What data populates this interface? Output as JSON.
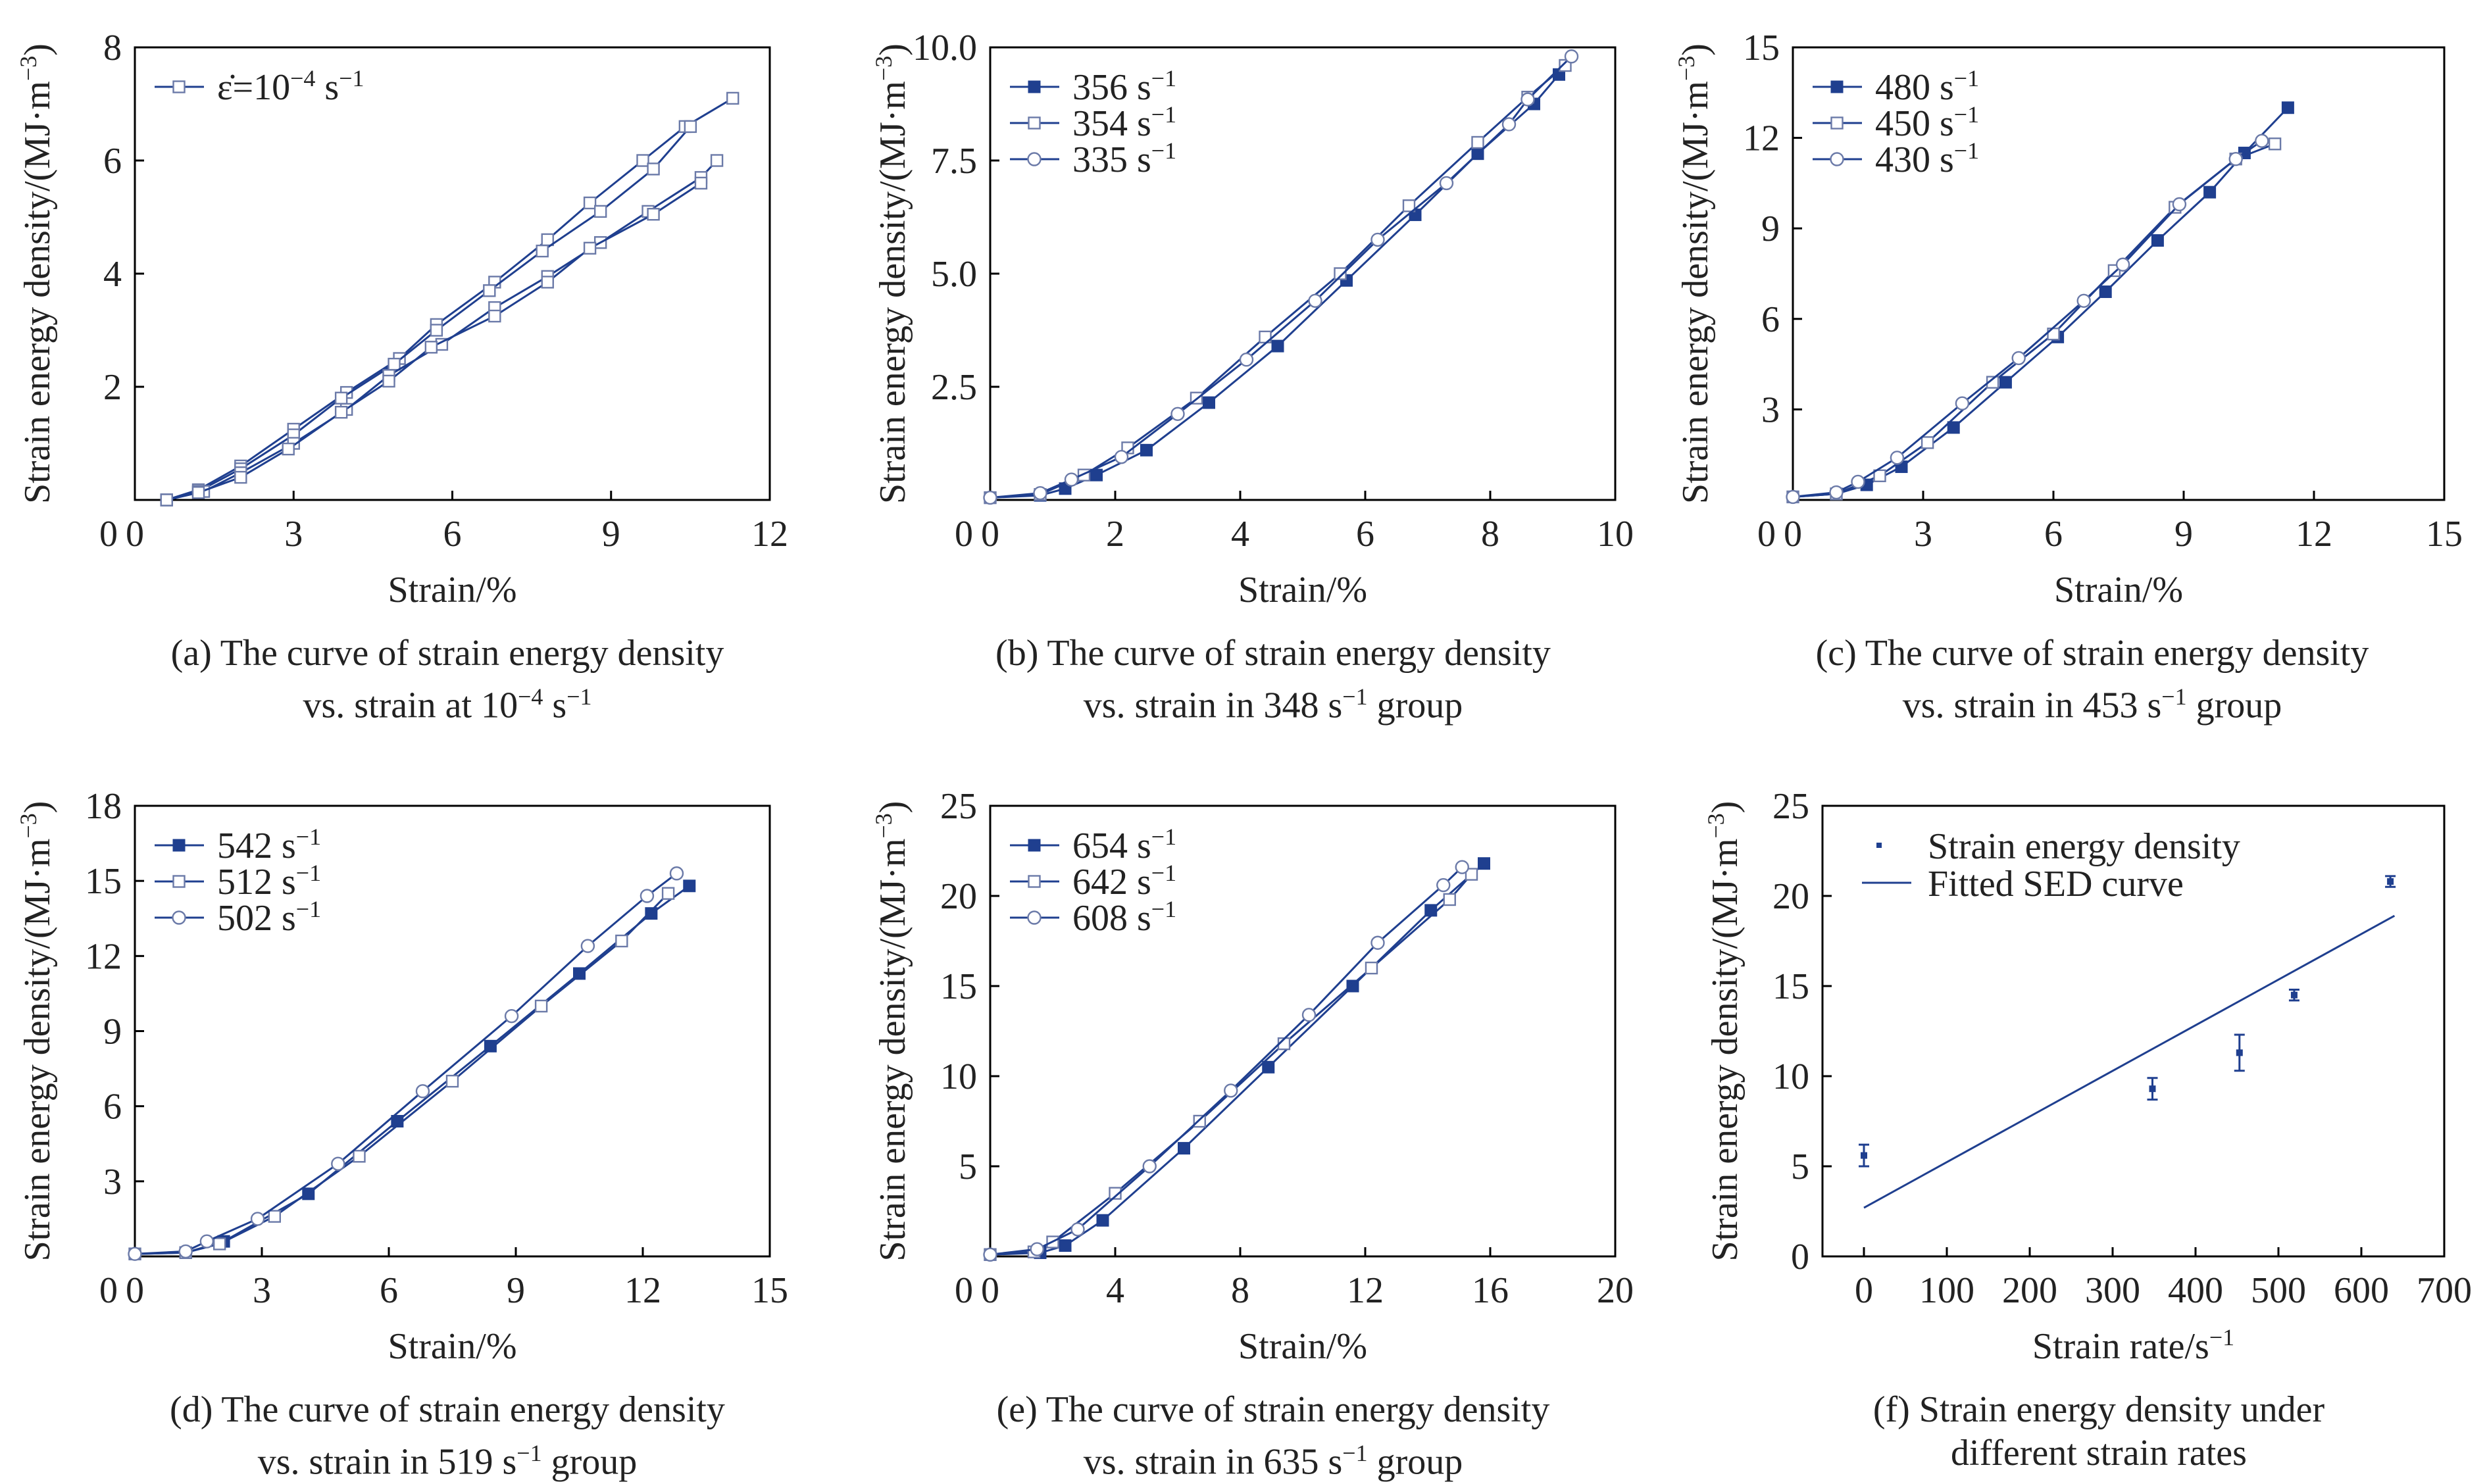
{
  "colors": {
    "series": "#1f3f8f",
    "axis": "#000000",
    "text": "#222222"
  },
  "chart_data": [
    {
      "type": "line",
      "panel": "(a)",
      "caption_line1": "(a) The curve of strain energy density",
      "caption_line2": "vs. strain at 10",
      "caption_line2_sup": "−4",
      "caption_line2_tail": " s",
      "caption_line2_sup2": "−1",
      "caption_line2_end": "",
      "xlabel": "Strain/%",
      "ylabel": "Strain energy density/(MJ·m",
      "ylabel_sup": "−3",
      "ylabel_end": ")",
      "xlim": [
        0,
        12
      ],
      "ylim": [
        0,
        8
      ],
      "xticks": [
        0,
        3,
        6,
        9,
        12
      ],
      "yticks": [
        2,
        4,
        6,
        8
      ],
      "legend_placement": "top-left",
      "legend": [
        {
          "label": "ε̇=10",
          "sup": "−4",
          "tail": " s",
          "sup2": "−1",
          "marker": "square-open"
        }
      ],
      "series": [
        {
          "marker": "square-open",
          "x": [
            0.6,
            1.2,
            2.0,
            3.0,
            4.0,
            5.0,
            5.7,
            6.8,
            7.8,
            8.6,
            9.6,
            10.4,
            11.3
          ],
          "y": [
            0,
            0.18,
            0.6,
            1.25,
            1.9,
            2.5,
            3.1,
            3.85,
            4.6,
            5.25,
            6.0,
            6.6,
            7.1
          ]
        },
        {
          "marker": "square-open",
          "x": [
            0.6,
            1.2,
            2.0,
            3.0,
            3.9,
            4.9,
            5.7,
            6.7,
            7.7,
            8.8,
            9.8,
            10.5
          ],
          "y": [
            0,
            0.15,
            0.55,
            1.15,
            1.8,
            2.4,
            3.0,
            3.7,
            4.4,
            5.1,
            5.85,
            6.6
          ]
        },
        {
          "marker": "square-open",
          "x": [
            0.6,
            1.3,
            2.0,
            3.0,
            4.0,
            4.8,
            5.8,
            6.8,
            7.8,
            8.8,
            9.7,
            10.7,
            11.0
          ],
          "y": [
            0,
            0.15,
            0.48,
            1.0,
            1.6,
            2.2,
            2.75,
            3.4,
            3.95,
            4.55,
            5.1,
            5.7,
            6.0
          ]
        },
        {
          "marker": "square-open",
          "x": [
            0.6,
            1.2,
            2.0,
            2.9,
            3.9,
            4.8,
            5.6,
            6.8,
            7.8,
            8.6,
            9.8,
            10.7
          ],
          "y": [
            0,
            0.13,
            0.4,
            0.9,
            1.55,
            2.1,
            2.7,
            3.25,
            3.85,
            4.45,
            5.05,
            5.6
          ]
        }
      ]
    },
    {
      "type": "line",
      "panel": "(b)",
      "caption_line1": "(b) The curve of strain energy density",
      "caption_line2": "vs. strain in 348 s",
      "caption_line2_sup": "−1",
      "caption_line2_tail": " group",
      "caption_line2_sup2": "",
      "caption_line2_end": "",
      "xlabel": "Strain/%",
      "ylabel": "Strain energy density/(MJ·m",
      "ylabel_sup": "−3",
      "ylabel_end": ")",
      "xlim": [
        0,
        10
      ],
      "ylim": [
        0,
        10
      ],
      "xticks": [
        0,
        2,
        4,
        6,
        8,
        10
      ],
      "yticks": [
        2.5,
        5.0,
        7.5,
        10.0
      ],
      "ytick_labels": [
        "2.5",
        "5.0",
        "7.5",
        "10.0"
      ],
      "legend_placement": "top-left",
      "legend": [
        {
          "label": "356 s",
          "sup": "−1",
          "marker": "square-filled"
        },
        {
          "label": "354 s",
          "sup": "−1",
          "marker": "square-open"
        },
        {
          "label": "335 s",
          "sup": "−1",
          "marker": "circle-open"
        }
      ],
      "series": [
        {
          "name": "356 s−1",
          "marker": "square-filled",
          "x": [
            0,
            0.8,
            1.2,
            1.7,
            2.5,
            3.5,
            4.6,
            5.7,
            6.8,
            7.8,
            8.7,
            9.1
          ],
          "y": [
            0.05,
            0.1,
            0.25,
            0.55,
            1.1,
            2.15,
            3.4,
            4.85,
            6.3,
            7.65,
            8.75,
            9.4
          ]
        },
        {
          "name": "354 s−1",
          "marker": "square-open",
          "x": [
            0,
            0.8,
            1.5,
            2.2,
            3.3,
            4.4,
            5.6,
            6.7,
            7.8,
            8.6,
            9.2
          ],
          "y": [
            0.05,
            0.12,
            0.55,
            1.15,
            2.25,
            3.6,
            5.0,
            6.5,
            7.9,
            8.9,
            9.6
          ]
        },
        {
          "name": "335 s−1",
          "marker": "circle-open",
          "x": [
            0,
            0.8,
            1.3,
            2.1,
            3.0,
            4.1,
            5.2,
            6.2,
            7.3,
            8.3,
            8.6,
            9.3
          ],
          "y": [
            0.05,
            0.15,
            0.45,
            0.95,
            1.9,
            3.1,
            4.4,
            5.75,
            7.0,
            8.3,
            8.85,
            9.8
          ]
        }
      ]
    },
    {
      "type": "line",
      "panel": "(c)",
      "caption_line1": "(c) The curve of strain energy density",
      "caption_line2": "vs. strain in 453 s",
      "caption_line2_sup": "−1",
      "caption_line2_tail": " group",
      "caption_line2_sup2": "",
      "caption_line2_end": "",
      "xlabel": "Strain/%",
      "ylabel": "Strain energy density/(MJ·m",
      "ylabel_sup": "−3",
      "ylabel_end": ")",
      "xlim": [
        0,
        15
      ],
      "ylim": [
        0,
        15
      ],
      "xticks": [
        0,
        3,
        6,
        9,
        12,
        15
      ],
      "yticks": [
        3,
        6,
        9,
        12,
        15
      ],
      "legend_placement": "top-left",
      "legend": [
        {
          "label": "480 s",
          "sup": "−1",
          "marker": "square-filled"
        },
        {
          "label": "450 s",
          "sup": "−1",
          "marker": "square-open"
        },
        {
          "label": "430 s",
          "sup": "−1",
          "marker": "circle-open"
        }
      ],
      "series": [
        {
          "name": "480 s−1",
          "marker": "square-filled",
          "x": [
            0,
            1.0,
            1.7,
            2.5,
            3.7,
            4.9,
            6.1,
            7.2,
            8.4,
            9.6,
            10.4,
            11.4
          ],
          "y": [
            0.1,
            0.2,
            0.5,
            1.1,
            2.4,
            3.9,
            5.4,
            6.9,
            8.6,
            10.2,
            11.5,
            13.0
          ]
        },
        {
          "name": "450 s−1",
          "marker": "square-open",
          "x": [
            0,
            1.0,
            2.0,
            3.1,
            4.6,
            6.0,
            7.4,
            8.8,
            10.2,
            11.1
          ],
          "y": [
            0.1,
            0.2,
            0.8,
            1.9,
            3.9,
            5.5,
            7.6,
            9.7,
            11.3,
            11.8
          ]
        },
        {
          "name": "430 s−1",
          "marker": "circle-open",
          "x": [
            0,
            1.0,
            1.5,
            2.4,
            3.9,
            5.2,
            6.7,
            7.6,
            8.9,
            10.2,
            10.8
          ],
          "y": [
            0.1,
            0.25,
            0.6,
            1.4,
            3.2,
            4.7,
            6.6,
            7.8,
            9.8,
            11.3,
            11.9
          ]
        }
      ]
    },
    {
      "type": "line",
      "panel": "(d)",
      "caption_line1": "(d) The curve of strain energy density",
      "caption_line2": "vs. strain in 519 s",
      "caption_line2_sup": "−1",
      "caption_line2_tail": " group",
      "caption_line2_sup2": "",
      "caption_line2_end": "",
      "xlabel": "Strain/%",
      "ylabel": "Strain energy density/(MJ·m",
      "ylabel_sup": "−3",
      "ylabel_end": ")",
      "xlim": [
        0,
        15
      ],
      "ylim": [
        0,
        18
      ],
      "xticks": [
        0,
        3,
        6,
        9,
        12,
        15
      ],
      "yticks": [
        3,
        6,
        9,
        12,
        15,
        18
      ],
      "legend_placement": "top-left",
      "legend": [
        {
          "label": "542 s",
          "sup": "−1",
          "marker": "square-filled"
        },
        {
          "label": "512 s",
          "sup": "−1",
          "marker": "square-open"
        },
        {
          "label": "502 s",
          "sup": "−1",
          "marker": "circle-open"
        }
      ],
      "series": [
        {
          "name": "542 s−1",
          "marker": "square-filled",
          "x": [
            0,
            1.2,
            2.1,
            4.1,
            6.2,
            8.4,
            10.5,
            12.2,
            13.1
          ],
          "y": [
            0.1,
            0.15,
            0.6,
            2.5,
            5.4,
            8.4,
            11.3,
            13.7,
            14.8
          ]
        },
        {
          "name": "512 s−1",
          "marker": "square-open",
          "x": [
            0,
            1.2,
            2.0,
            3.3,
            5.3,
            7.5,
            9.6,
            11.5,
            12.6
          ],
          "y": [
            0.1,
            0.15,
            0.5,
            1.6,
            4.0,
            7.0,
            10.0,
            12.6,
            14.5
          ]
        },
        {
          "name": "502 s−1",
          "marker": "circle-open",
          "x": [
            0,
            1.2,
            1.7,
            2.9,
            4.8,
            6.8,
            8.9,
            10.7,
            12.1,
            12.8
          ],
          "y": [
            0.1,
            0.2,
            0.6,
            1.5,
            3.7,
            6.6,
            9.6,
            12.4,
            14.4,
            15.3
          ]
        }
      ]
    },
    {
      "type": "line",
      "panel": "(e)",
      "caption_line1": "(e) The curve of strain energy density",
      "caption_line2": "vs. strain in 635 s",
      "caption_line2_sup": "−1",
      "caption_line2_tail": " group",
      "caption_line2_sup2": "",
      "caption_line2_end": "",
      "xlabel": "Strain/%",
      "ylabel": "Strain energy density/(MJ·m",
      "ylabel_sup": "−3",
      "ylabel_end": ")",
      "xlim": [
        0,
        20
      ],
      "ylim": [
        0,
        25
      ],
      "xticks": [
        0,
        4,
        8,
        12,
        16,
        20
      ],
      "yticks": [
        5,
        10,
        15,
        20,
        25
      ],
      "legend_placement": "top-left",
      "legend": [
        {
          "label": "654 s",
          "sup": "−1",
          "marker": "square-filled"
        },
        {
          "label": "642 s",
          "sup": "−1",
          "marker": "square-open"
        },
        {
          "label": "608 s",
          "sup": "−1",
          "marker": "circle-open"
        }
      ],
      "series": [
        {
          "name": "654 s−1",
          "marker": "square-filled",
          "x": [
            0,
            1.6,
            2.4,
            3.6,
            6.2,
            8.9,
            11.6,
            14.1,
            15.8
          ],
          "y": [
            0.1,
            0.2,
            0.6,
            2.0,
            6.0,
            10.5,
            15.0,
            19.2,
            21.8
          ]
        },
        {
          "name": "642 s−1",
          "marker": "square-open",
          "x": [
            0,
            1.4,
            2.0,
            4.0,
            6.7,
            9.4,
            12.2,
            14.7,
            15.4
          ],
          "y": [
            0.1,
            0.25,
            0.8,
            3.5,
            7.5,
            11.8,
            16.0,
            19.8,
            21.2
          ]
        },
        {
          "name": "608 s−1",
          "marker": "circle-open",
          "x": [
            0,
            1.5,
            2.8,
            5.1,
            7.7,
            10.2,
            12.4,
            14.5,
            15.1
          ],
          "y": [
            0.1,
            0.4,
            1.5,
            5.0,
            9.2,
            13.4,
            17.4,
            20.6,
            21.6
          ]
        }
      ]
    },
    {
      "type": "scatter",
      "panel": "(f)",
      "caption_line1": "(f) Strain energy density under",
      "caption_line2": "different strain rates",
      "caption_line2_sup": "",
      "caption_line2_tail": "",
      "caption_line2_sup2": "",
      "caption_line2_end": "",
      "xlabel": "Strain rate/s",
      "xlabel_sup": "−1",
      "ylabel": "Strain energy density/(MJ·m",
      "ylabel_sup": "−3",
      "ylabel_end": ")",
      "xlim": [
        -50,
        700
      ],
      "ylim": [
        0,
        25
      ],
      "xticks": [
        0,
        100,
        200,
        300,
        400,
        500,
        600,
        700
      ],
      "yticks": [
        0,
        5,
        10,
        15,
        20,
        25
      ],
      "legend_placement": "top-left",
      "legend": [
        {
          "label": "Strain energy density",
          "marker": "errorbar"
        },
        {
          "label": "Fitted SED curve",
          "marker": "line"
        }
      ],
      "points": [
        {
          "x": 0.0001,
          "y": 5.6,
          "err": 0.6
        },
        {
          "x": 348,
          "y": 9.3,
          "err": 0.6
        },
        {
          "x": 453,
          "y": 11.3,
          "err": 1.0
        },
        {
          "x": 519,
          "y": 14.5,
          "err": 0.3
        },
        {
          "x": 635,
          "y": 20.8,
          "err": 0.3
        }
      ],
      "fit": {
        "x": [
          0,
          640
        ],
        "y": [
          2.7,
          18.9
        ]
      }
    }
  ]
}
